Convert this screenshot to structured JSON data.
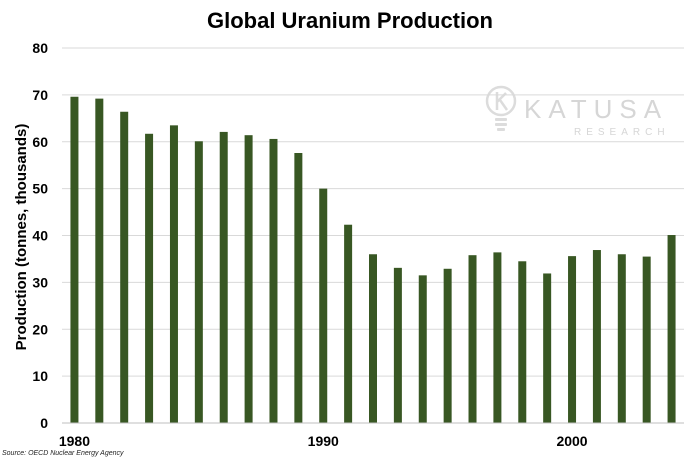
{
  "colors": {
    "bar": "#385723",
    "grid": "#d9d9d9",
    "axis": "#bfbfbf"
  },
  "watermark": {
    "brand": "KATUSA",
    "sub": "RESEARCH",
    "icon": "lightbulb-k-logo"
  },
  "source_note": "Source: OECD Nuclear Energy Agency",
  "chart_data": {
    "type": "bar",
    "title": "Global Uranium Production",
    "xlabel": "",
    "ylabel": "Production (tonnes, thousands)",
    "ylim": [
      0,
      80
    ],
    "yticks": [
      0,
      10,
      20,
      30,
      40,
      50,
      60,
      70,
      80
    ],
    "xticks": [
      "1980",
      "1990",
      "2000"
    ],
    "grid": true,
    "categories": [
      1980,
      1981,
      1982,
      1983,
      1984,
      1985,
      1986,
      1987,
      1988,
      1989,
      1990,
      1991,
      1992,
      1993,
      1994,
      1995,
      1996,
      1997,
      1998,
      1999,
      2000,
      2001,
      2002,
      2003,
      2004
    ],
    "values": [
      69.6,
      69.2,
      66.4,
      61.7,
      63.5,
      60.1,
      62.1,
      61.4,
      60.6,
      57.6,
      50.0,
      42.3,
      36.0,
      33.1,
      31.5,
      32.9,
      35.8,
      36.4,
      34.5,
      31.9,
      35.6,
      36.9,
      36.0,
      35.5,
      40.1
    ]
  }
}
